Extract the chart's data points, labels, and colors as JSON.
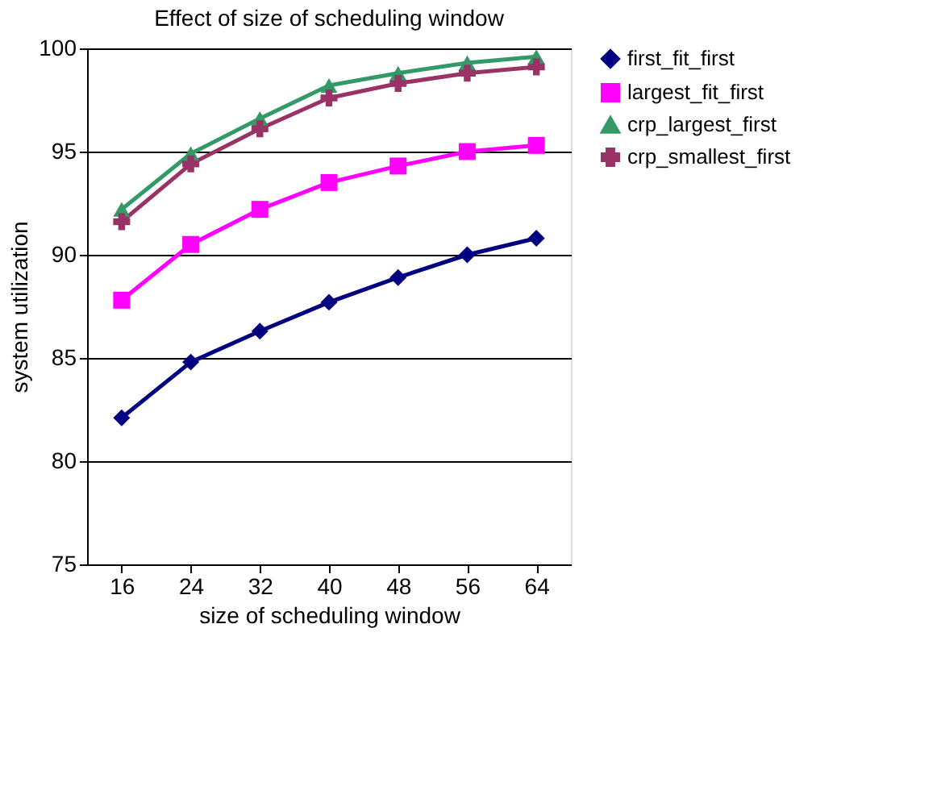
{
  "chart_data": {
    "type": "line",
    "title": "Effect of size of scheduling window",
    "xlabel": "size of scheduling window",
    "ylabel": "system utilization",
    "categories": [
      "16",
      "24",
      "32",
      "40",
      "48",
      "56",
      "64"
    ],
    "series": [
      {
        "name": "first_fit_first",
        "color": "#000080",
        "marker": "diamond",
        "values": [
          82.1,
          84.8,
          86.3,
          87.7,
          88.9,
          90.0,
          90.8
        ]
      },
      {
        "name": "largest_fit_first",
        "color": "#ff00ff",
        "marker": "square",
        "values": [
          87.8,
          90.5,
          92.2,
          93.5,
          94.3,
          95.0,
          95.3
        ]
      },
      {
        "name": "crp_largest_first",
        "color": "#339966",
        "marker": "triangle",
        "values": [
          92.2,
          94.9,
          96.6,
          98.2,
          98.8,
          99.3,
          99.6
        ]
      },
      {
        "name": "crp_smallest_first",
        "color": "#993366",
        "marker": "cross",
        "values": [
          91.6,
          94.4,
          96.1,
          97.6,
          98.3,
          98.8,
          99.1
        ]
      }
    ],
    "ylim": [
      75,
      100
    ],
    "yticks": [
      75,
      80,
      85,
      90,
      95,
      100
    ],
    "grid": "y",
    "legend": "right",
    "line_style": "solid"
  }
}
